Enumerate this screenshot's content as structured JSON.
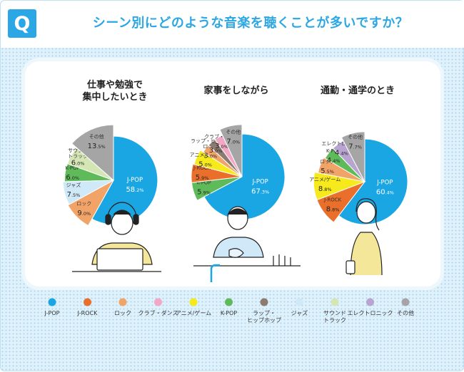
{
  "header": {
    "badge": "Q",
    "question": "シーン別にどのような音楽を聴くことが多いですか？"
  },
  "colors": {
    "J-POP": "#1aa5e3",
    "J-ROCK": "#e96f2b",
    "ロック": "#f2a468",
    "クラブ・ダンス": "#f2a7c4",
    "アニメ/ゲーム": "#f7ea1c",
    "K-POP": "#5fbb5a",
    "ラップ・ヒップホップ": "#8d7b72",
    "ジャズ": "#cfe9f8",
    "サウンドトラック": "#d5e6b5",
    "エレクトロニック": "#b8a4d0",
    "その他": "#a5a5a5"
  },
  "legend": [
    {
      "key": "J-POP",
      "label": "J-POP"
    },
    {
      "key": "J-ROCK",
      "label": "J-ROCK"
    },
    {
      "key": "ロック",
      "label": "ロック"
    },
    {
      "key": "クラブ・ダンス",
      "label": "クラブ・ダンス"
    },
    {
      "key": "アニメ/ゲーム",
      "label": "アニメ/ゲーム"
    },
    {
      "key": "K-POP",
      "label": "K-POP"
    },
    {
      "key": "ラップ・ヒップホップ",
      "label": "ラップ・\nヒップホップ"
    },
    {
      "key": "ジャズ",
      "label": "ジャズ"
    },
    {
      "key": "サウンドトラック",
      "label": "サウンド\nトラック"
    },
    {
      "key": "エレクトロニック",
      "label": "エレクトロニック"
    },
    {
      "key": "その他",
      "label": "その他"
    }
  ],
  "chart_data": [
    {
      "type": "pie",
      "title": "仕事や勉強で\n集中したいとき",
      "slices": [
        {
          "key": "J-POP",
          "label": "J-POP",
          "value": 58.2
        },
        {
          "key": "ロック",
          "label": "ロック",
          "value": 9.0
        },
        {
          "key": "ジャズ",
          "label": "ジャズ",
          "value": 7.5
        },
        {
          "key": "K-POP",
          "label": "K-POP",
          "value": 6.0
        },
        {
          "key": "サウンドトラック",
          "label": "サウンド\nトラック",
          "value": 6.0
        },
        {
          "key": "その他",
          "label": "その他",
          "value": 13.5
        }
      ]
    },
    {
      "type": "pie",
      "title": "家事をしながら",
      "slices": [
        {
          "key": "J-POP",
          "label": "J-POP",
          "value": 67.3
        },
        {
          "key": "K-POP",
          "label": "K-POP",
          "value": 5.9
        },
        {
          "key": "J-ROCK",
          "label": "J-ROCK",
          "value": 5.9
        },
        {
          "key": "アニメ/ゲーム",
          "label": "アニメ/ゲーム",
          "value": 5.0
        },
        {
          "key": "ロック",
          "label": "ロック",
          "value": 3.0
        },
        {
          "key": "ラップ・ヒップホップ",
          "label": "ラップ・ヒップホップ",
          "value": 3.0
        },
        {
          "key": "クラブ・ダンス",
          "label": "クラブ・ダンス",
          "value": 3.0
        },
        {
          "key": "その他",
          "label": "その他",
          "value": 7.0
        }
      ]
    },
    {
      "type": "pie",
      "title": "通勤・通学のとき",
      "slices": [
        {
          "key": "J-POP",
          "label": "J-POP",
          "value": 60.4
        },
        {
          "key": "J-ROCK",
          "label": "J-ROCK",
          "value": 8.8
        },
        {
          "key": "アニメ/ゲーム",
          "label": "アニメ/ゲーム",
          "value": 8.8
        },
        {
          "key": "ロック",
          "label": "ロック",
          "value": 5.5
        },
        {
          "key": "K-POP",
          "label": "K-POP",
          "value": 4.4
        },
        {
          "key": "エレクトロニック",
          "label": "エレクトロニック",
          "value": 4.4
        },
        {
          "key": "その他",
          "label": "その他",
          "value": 7.7
        }
      ]
    }
  ]
}
